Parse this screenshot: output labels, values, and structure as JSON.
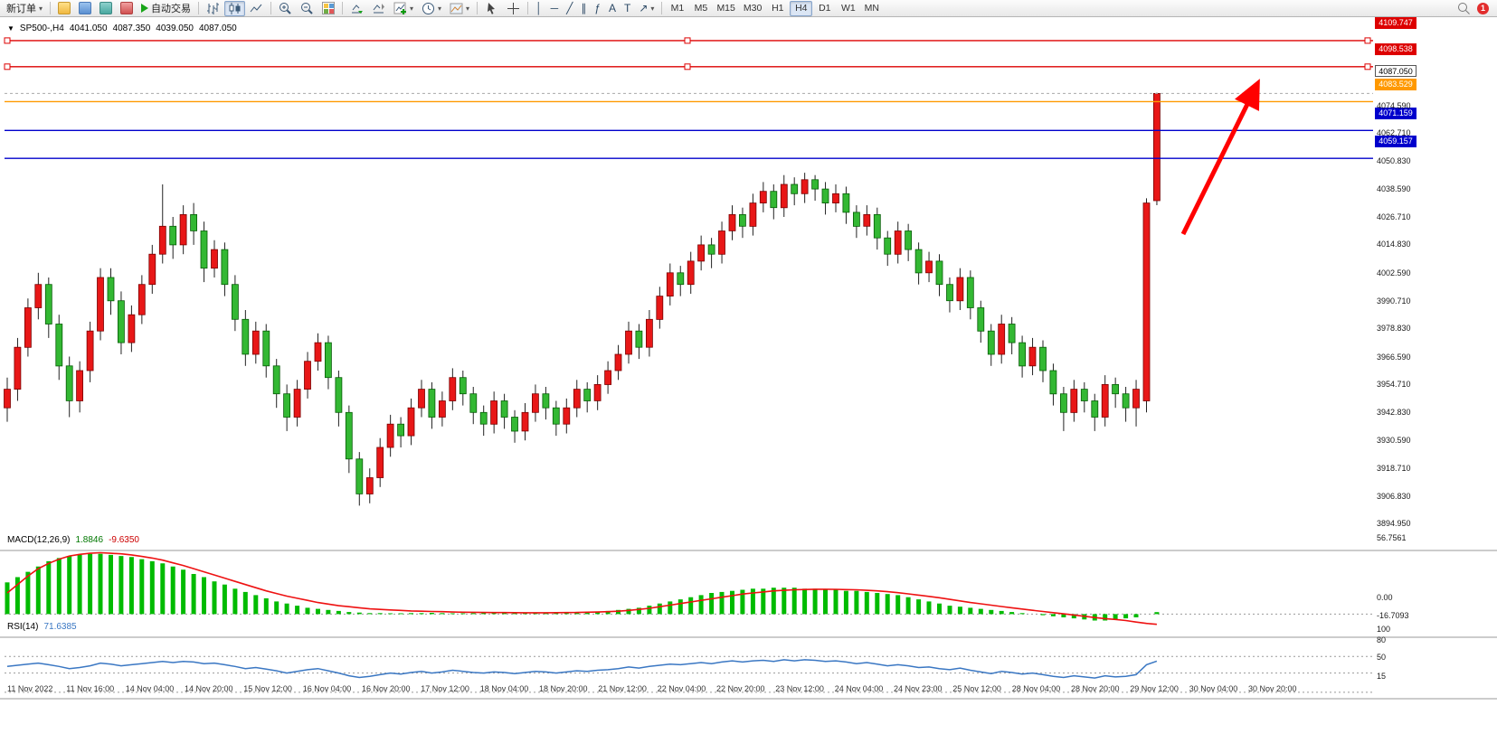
{
  "toolbar": {
    "new_order_label": "新订单",
    "auto_trading_label": "自动交易",
    "notification_count": "1",
    "timeframes": [
      "M1",
      "M5",
      "M15",
      "M30",
      "H1",
      "H4",
      "D1",
      "W1",
      "MN"
    ],
    "active_timeframe": "H4",
    "icons": {
      "dropdown": "▾",
      "vertical_line": "│",
      "horizontal_line": "─",
      "trend_line": "╱",
      "channel": "∥",
      "fibonacci": "ƒ",
      "text_tool": "A",
      "label_tool": "T",
      "arrow_tool": "↗"
    }
  },
  "chart_title": {
    "marker": "▼",
    "symbol": "SP500-,H4",
    "open": "4041.050",
    "high": "4087.350",
    "low": "4039.050",
    "close": "4087.050"
  },
  "indicators": {
    "macd": {
      "label": "MACD(12,26,9)",
      "value_main": "1.8846",
      "value_signal": "-9.6350",
      "scale": [
        "56.7561",
        "0.00",
        "-16.7093"
      ]
    },
    "rsi": {
      "label": "RSI(14)",
      "value": "71.6385",
      "scale": [
        "100",
        "80",
        "50",
        "15"
      ],
      "levels": [
        80,
        50,
        15
      ]
    }
  },
  "time_axis": {
    "labels": [
      "11 Nov 2022",
      "11 Nov 16:00",
      "14 Nov 04:00",
      "14 Nov 20:00",
      "15 Nov 12:00",
      "16 Nov 04:00",
      "16 Nov 20:00",
      "17 Nov 12:00",
      "18 Nov 04:00",
      "18 Nov 20:00",
      "21 Nov 12:00",
      "22 Nov 04:00",
      "22 Nov 20:00",
      "23 Nov 12:00",
      "24 Nov 04:00",
      "24 Nov 23:00",
      "25 Nov 12:00",
      "28 Nov 04:00",
      "28 Nov 20:00",
      "29 Nov 12:00",
      "30 Nov 04:00",
      "30 Nov 20:00"
    ]
  },
  "chart_data": {
    "type": "candlestick",
    "title": "SP500-,H4",
    "timeframe": "H4",
    "up_color": "#e81717",
    "down_color": "#33b833",
    "macd_color": "#00bb00",
    "signal_color": "#ee1111",
    "rsi_color": "#3a77c3",
    "candles": [
      [
        3952,
        3965,
        3946,
        3960
      ],
      [
        3960,
        3982,
        3955,
        3978
      ],
      [
        3978,
        3999,
        3974,
        3995
      ],
      [
        3995,
        4010,
        3990,
        4005
      ],
      [
        4005,
        4008,
        3982,
        3988
      ],
      [
        3988,
        3992,
        3964,
        3970
      ],
      [
        3970,
        3974,
        3948,
        3955
      ],
      [
        3955,
        3972,
        3950,
        3968
      ],
      [
        3968,
        3989,
        3963,
        3985
      ],
      [
        3985,
        4012,
        3981,
        4008
      ],
      [
        4008,
        4012,
        3992,
        3998
      ],
      [
        3998,
        4002,
        3975,
        3980
      ],
      [
        3980,
        3996,
        3976,
        3992
      ],
      [
        3992,
        4009,
        3988,
        4005
      ],
      [
        4005,
        4022,
        4001,
        4018
      ],
      [
        4018,
        4048,
        4014,
        4030
      ],
      [
        4030,
        4034,
        4016,
        4022
      ],
      [
        4022,
        4039,
        4018,
        4035
      ],
      [
        4035,
        4040,
        4022,
        4028
      ],
      [
        4028,
        4032,
        4006,
        4012
      ],
      [
        4012,
        4024,
        4008,
        4020
      ],
      [
        4020,
        4023,
        4000,
        4005
      ],
      [
        4005,
        4009,
        3985,
        3990
      ],
      [
        3990,
        3994,
        3970,
        3975
      ],
      [
        3975,
        3989,
        3971,
        3985
      ],
      [
        3985,
        3988,
        3965,
        3970
      ],
      [
        3970,
        3973,
        3952,
        3958
      ],
      [
        3958,
        3962,
        3942,
        3948
      ],
      [
        3948,
        3964,
        3944,
        3960
      ],
      [
        3960,
        3976,
        3956,
        3972
      ],
      [
        3972,
        3984,
        3968,
        3980
      ],
      [
        3980,
        3983,
        3960,
        3965
      ],
      [
        3965,
        3968,
        3944,
        3950
      ],
      [
        3950,
        3953,
        3924,
        3930
      ],
      [
        3930,
        3933,
        3910,
        3915
      ],
      [
        3915,
        3926,
        3911,
        3922
      ],
      [
        3922,
        3939,
        3918,
        3935
      ],
      [
        3935,
        3949,
        3931,
        3945
      ],
      [
        3945,
        3948,
        3935,
        3940
      ],
      [
        3940,
        3956,
        3936,
        3952
      ],
      [
        3952,
        3964,
        3948,
        3960
      ],
      [
        3960,
        3963,
        3943,
        3948
      ],
      [
        3948,
        3959,
        3944,
        3955
      ],
      [
        3955,
        3969,
        3951,
        3965
      ],
      [
        3965,
        3968,
        3953,
        3958
      ],
      [
        3958,
        3961,
        3945,
        3950
      ],
      [
        3950,
        3953,
        3940,
        3945
      ],
      [
        3945,
        3959,
        3941,
        3955
      ],
      [
        3955,
        3958,
        3943,
        3948
      ],
      [
        3948,
        3951,
        3937,
        3942
      ],
      [
        3942,
        3954,
        3938,
        3950
      ],
      [
        3950,
        3962,
        3946,
        3958
      ],
      [
        3958,
        3961,
        3947,
        3952
      ],
      [
        3952,
        3955,
        3940,
        3945
      ],
      [
        3945,
        3956,
        3941,
        3952
      ],
      [
        3952,
        3964,
        3948,
        3960
      ],
      [
        3960,
        3963,
        3950,
        3955
      ],
      [
        3955,
        3966,
        3951,
        3962
      ],
      [
        3962,
        3972,
        3958,
        3968
      ],
      [
        3968,
        3979,
        3964,
        3975
      ],
      [
        3975,
        3989,
        3971,
        3985
      ],
      [
        3985,
        3988,
        3973,
        3978
      ],
      [
        3978,
        3994,
        3974,
        3990
      ],
      [
        3990,
        4004,
        3986,
        4000
      ],
      [
        4000,
        4014,
        3996,
        4010
      ],
      [
        4010,
        4013,
        4000,
        4005
      ],
      [
        4005,
        4019,
        4001,
        4015
      ],
      [
        4015,
        4026,
        4011,
        4022
      ],
      [
        4022,
        4025,
        4012,
        4018
      ],
      [
        4018,
        4032,
        4014,
        4028
      ],
      [
        4028,
        4039,
        4024,
        4035
      ],
      [
        4035,
        4038,
        4025,
        4030
      ],
      [
        4030,
        4044,
        4026,
        4040
      ],
      [
        4040,
        4049,
        4036,
        4045
      ],
      [
        4045,
        4048,
        4033,
        4038
      ],
      [
        4038,
        4052,
        4034,
        4048
      ],
      [
        4048,
        4051,
        4039,
        4044
      ],
      [
        4044,
        4053,
        4040,
        4050
      ],
      [
        4050,
        4052,
        4041,
        4046
      ],
      [
        4046,
        4049,
        4035,
        4040
      ],
      [
        4040,
        4048,
        4036,
        4044
      ],
      [
        4044,
        4047,
        4031,
        4036
      ],
      [
        4036,
        4039,
        4025,
        4030
      ],
      [
        4030,
        4039,
        4026,
        4035
      ],
      [
        4035,
        4038,
        4020,
        4025
      ],
      [
        4025,
        4028,
        4013,
        4018
      ],
      [
        4018,
        4032,
        4014,
        4028
      ],
      [
        4028,
        4031,
        4015,
        4020
      ],
      [
        4020,
        4023,
        4005,
        4010
      ],
      [
        4010,
        4019,
        4006,
        4015
      ],
      [
        4015,
        4018,
        4000,
        4005
      ],
      [
        4005,
        4008,
        3993,
        3998
      ],
      [
        3998,
        4012,
        3994,
        4008
      ],
      [
        4008,
        4011,
        3990,
        3995
      ],
      [
        3995,
        3998,
        3980,
        3985
      ],
      [
        3985,
        3988,
        3970,
        3975
      ],
      [
        3975,
        3992,
        3971,
        3988
      ],
      [
        3988,
        3991,
        3975,
        3980
      ],
      [
        3980,
        3983,
        3965,
        3970
      ],
      [
        3970,
        3982,
        3966,
        3978
      ],
      [
        3978,
        3981,
        3963,
        3968
      ],
      [
        3968,
        3971,
        3953,
        3958
      ],
      [
        3958,
        3961,
        3942,
        3950
      ],
      [
        3950,
        3964,
        3946,
        3960
      ],
      [
        3960,
        3963,
        3950,
        3955
      ],
      [
        3955,
        3958,
        3942,
        3948
      ],
      [
        3948,
        3966,
        3944,
        3962
      ],
      [
        3962,
        3965,
        3952,
        3958
      ],
      [
        3958,
        3961,
        3946,
        3952
      ],
      [
        3952,
        3964,
        3944,
        3960
      ],
      [
        3955,
        4042,
        3950,
        4040
      ],
      [
        4041,
        4087.35,
        4039.05,
        4087.05
      ]
    ],
    "levels": [
      {
        "label": "4109.747",
        "price": 4109.747,
        "color": "#dd0000",
        "kind": "hline",
        "name": "red-resistance-line-1"
      },
      {
        "label": "4098.538",
        "price": 4098.538,
        "color": "#dd0000",
        "kind": "hline",
        "name": "red-resistance-line-2"
      },
      {
        "label": "4087.050",
        "price": 4087.05,
        "color": "#666666",
        "kind": "current",
        "name": "current-price-level"
      },
      {
        "label": "4083.529",
        "price": 4083.529,
        "color": "#ff9900",
        "kind": "hline",
        "name": "orange-level-line"
      },
      {
        "label": "4071.159",
        "price": 4071.159,
        "color": "#0000cc",
        "kind": "hline",
        "name": "blue-level-line-1"
      },
      {
        "label": "4059.157",
        "price": 4059.157,
        "color": "#0000cc",
        "kind": "hline",
        "name": "blue-level-line-2"
      }
    ],
    "price_axis_ticks": [
      "4074.590",
      "4062.710",
      "4050.830",
      "4038.590",
      "4026.710",
      "4014.830",
      "4002.590",
      "3990.710",
      "3978.830",
      "3966.590",
      "3954.710",
      "3942.830",
      "3930.590",
      "3918.710",
      "3906.830",
      "3894.950"
    ],
    "macd": {
      "histogram": [
        30,
        35,
        40,
        45,
        50,
        53,
        55,
        56,
        57,
        57,
        56,
        55,
        54,
        52,
        50,
        48,
        45,
        42,
        38,
        35,
        31,
        28,
        24,
        21,
        18,
        15,
        12,
        10,
        8,
        6,
        5,
        4,
        3,
        2,
        1.5,
        1,
        1,
        0.8,
        0.8,
        1,
        1,
        1.2,
        1,
        0.8,
        0.8,
        1,
        1.2,
        1.5,
        1.2,
        1,
        0.8,
        1,
        1.2,
        1.5,
        1.8,
        2,
        2,
        2.5,
        3,
        4,
        5,
        6,
        8,
        10,
        12,
        14,
        16,
        18,
        20,
        21,
        22,
        23,
        24,
        24,
        25,
        25,
        25,
        24,
        24,
        23,
        23,
        22,
        22,
        21,
        20,
        19,
        18,
        16,
        14,
        12,
        10,
        8,
        7,
        6,
        5,
        4,
        3,
        2,
        1,
        0,
        -1,
        -2,
        -3,
        -4,
        -5,
        -6,
        -6,
        -5,
        -4,
        -3,
        0,
        1.8846
      ],
      "signal": [
        20,
        28,
        36,
        43,
        48,
        52,
        55,
        56.5,
        57.5,
        58,
        57.5,
        57,
        56,
        54.5,
        53,
        51,
        48.5,
        46,
        43,
        40,
        37,
        34,
        31,
        28,
        25,
        22,
        19.5,
        17,
        15,
        13,
        11,
        9.5,
        8,
        7,
        6,
        5,
        4.5,
        4,
        3.5,
        3,
        2.8,
        2.5,
        2.3,
        2,
        1.8,
        1.7,
        1.6,
        1.5,
        1.5,
        1.4,
        1.3,
        1.3,
        1.3,
        1.4,
        1.5,
        1.6,
        1.8,
        2,
        2.3,
        2.8,
        3.5,
        4.5,
        5.5,
        7,
        8.5,
        10,
        11.5,
        13,
        14.5,
        16,
        17.5,
        19,
        20,
        21,
        22,
        22.5,
        23,
        23.3,
        23.5,
        23.5,
        23.4,
        23.2,
        23,
        22.5,
        22,
        21.2,
        20.3,
        19.2,
        18,
        16.8,
        15.5,
        14,
        12.5,
        11,
        9.8,
        8.5,
        7.2,
        6,
        4.8,
        3.6,
        2.5,
        1.4,
        0.3,
        -0.8,
        -2,
        -3.2,
        -4.2,
        -5,
        -6,
        -7.5,
        -8.8,
        -9.635
      ]
    },
    "rsi": {
      "values": [
        62,
        64,
        66,
        68,
        65,
        62,
        58,
        60,
        63,
        68,
        66,
        63,
        65,
        67,
        69,
        71,
        69,
        71,
        70,
        67,
        68,
        65,
        62,
        58,
        60,
        57,
        54,
        50,
        53,
        56,
        58,
        54,
        50,
        45,
        42,
        44,
        47,
        50,
        48,
        51,
        53,
        50,
        52,
        55,
        53,
        51,
        50,
        52,
        51,
        49,
        51,
        53,
        52,
        50,
        52,
        54,
        53,
        55,
        56,
        58,
        61,
        59,
        62,
        64,
        66,
        65,
        67,
        69,
        67,
        70,
        72,
        70,
        72,
        73,
        71,
        74,
        72,
        74,
        73,
        71,
        72,
        70,
        67,
        69,
        66,
        63,
        65,
        63,
        60,
        61,
        58,
        56,
        59,
        55,
        52,
        49,
        53,
        51,
        48,
        50,
        47,
        44,
        42,
        45,
        43,
        41,
        45,
        43,
        44,
        47,
        65,
        71.64
      ]
    },
    "annotations": [
      {
        "type": "arrow",
        "from": [
          1308,
          240
        ],
        "to": [
          1390,
          74
        ],
        "color": "#ff0000",
        "width": 5
      }
    ]
  }
}
